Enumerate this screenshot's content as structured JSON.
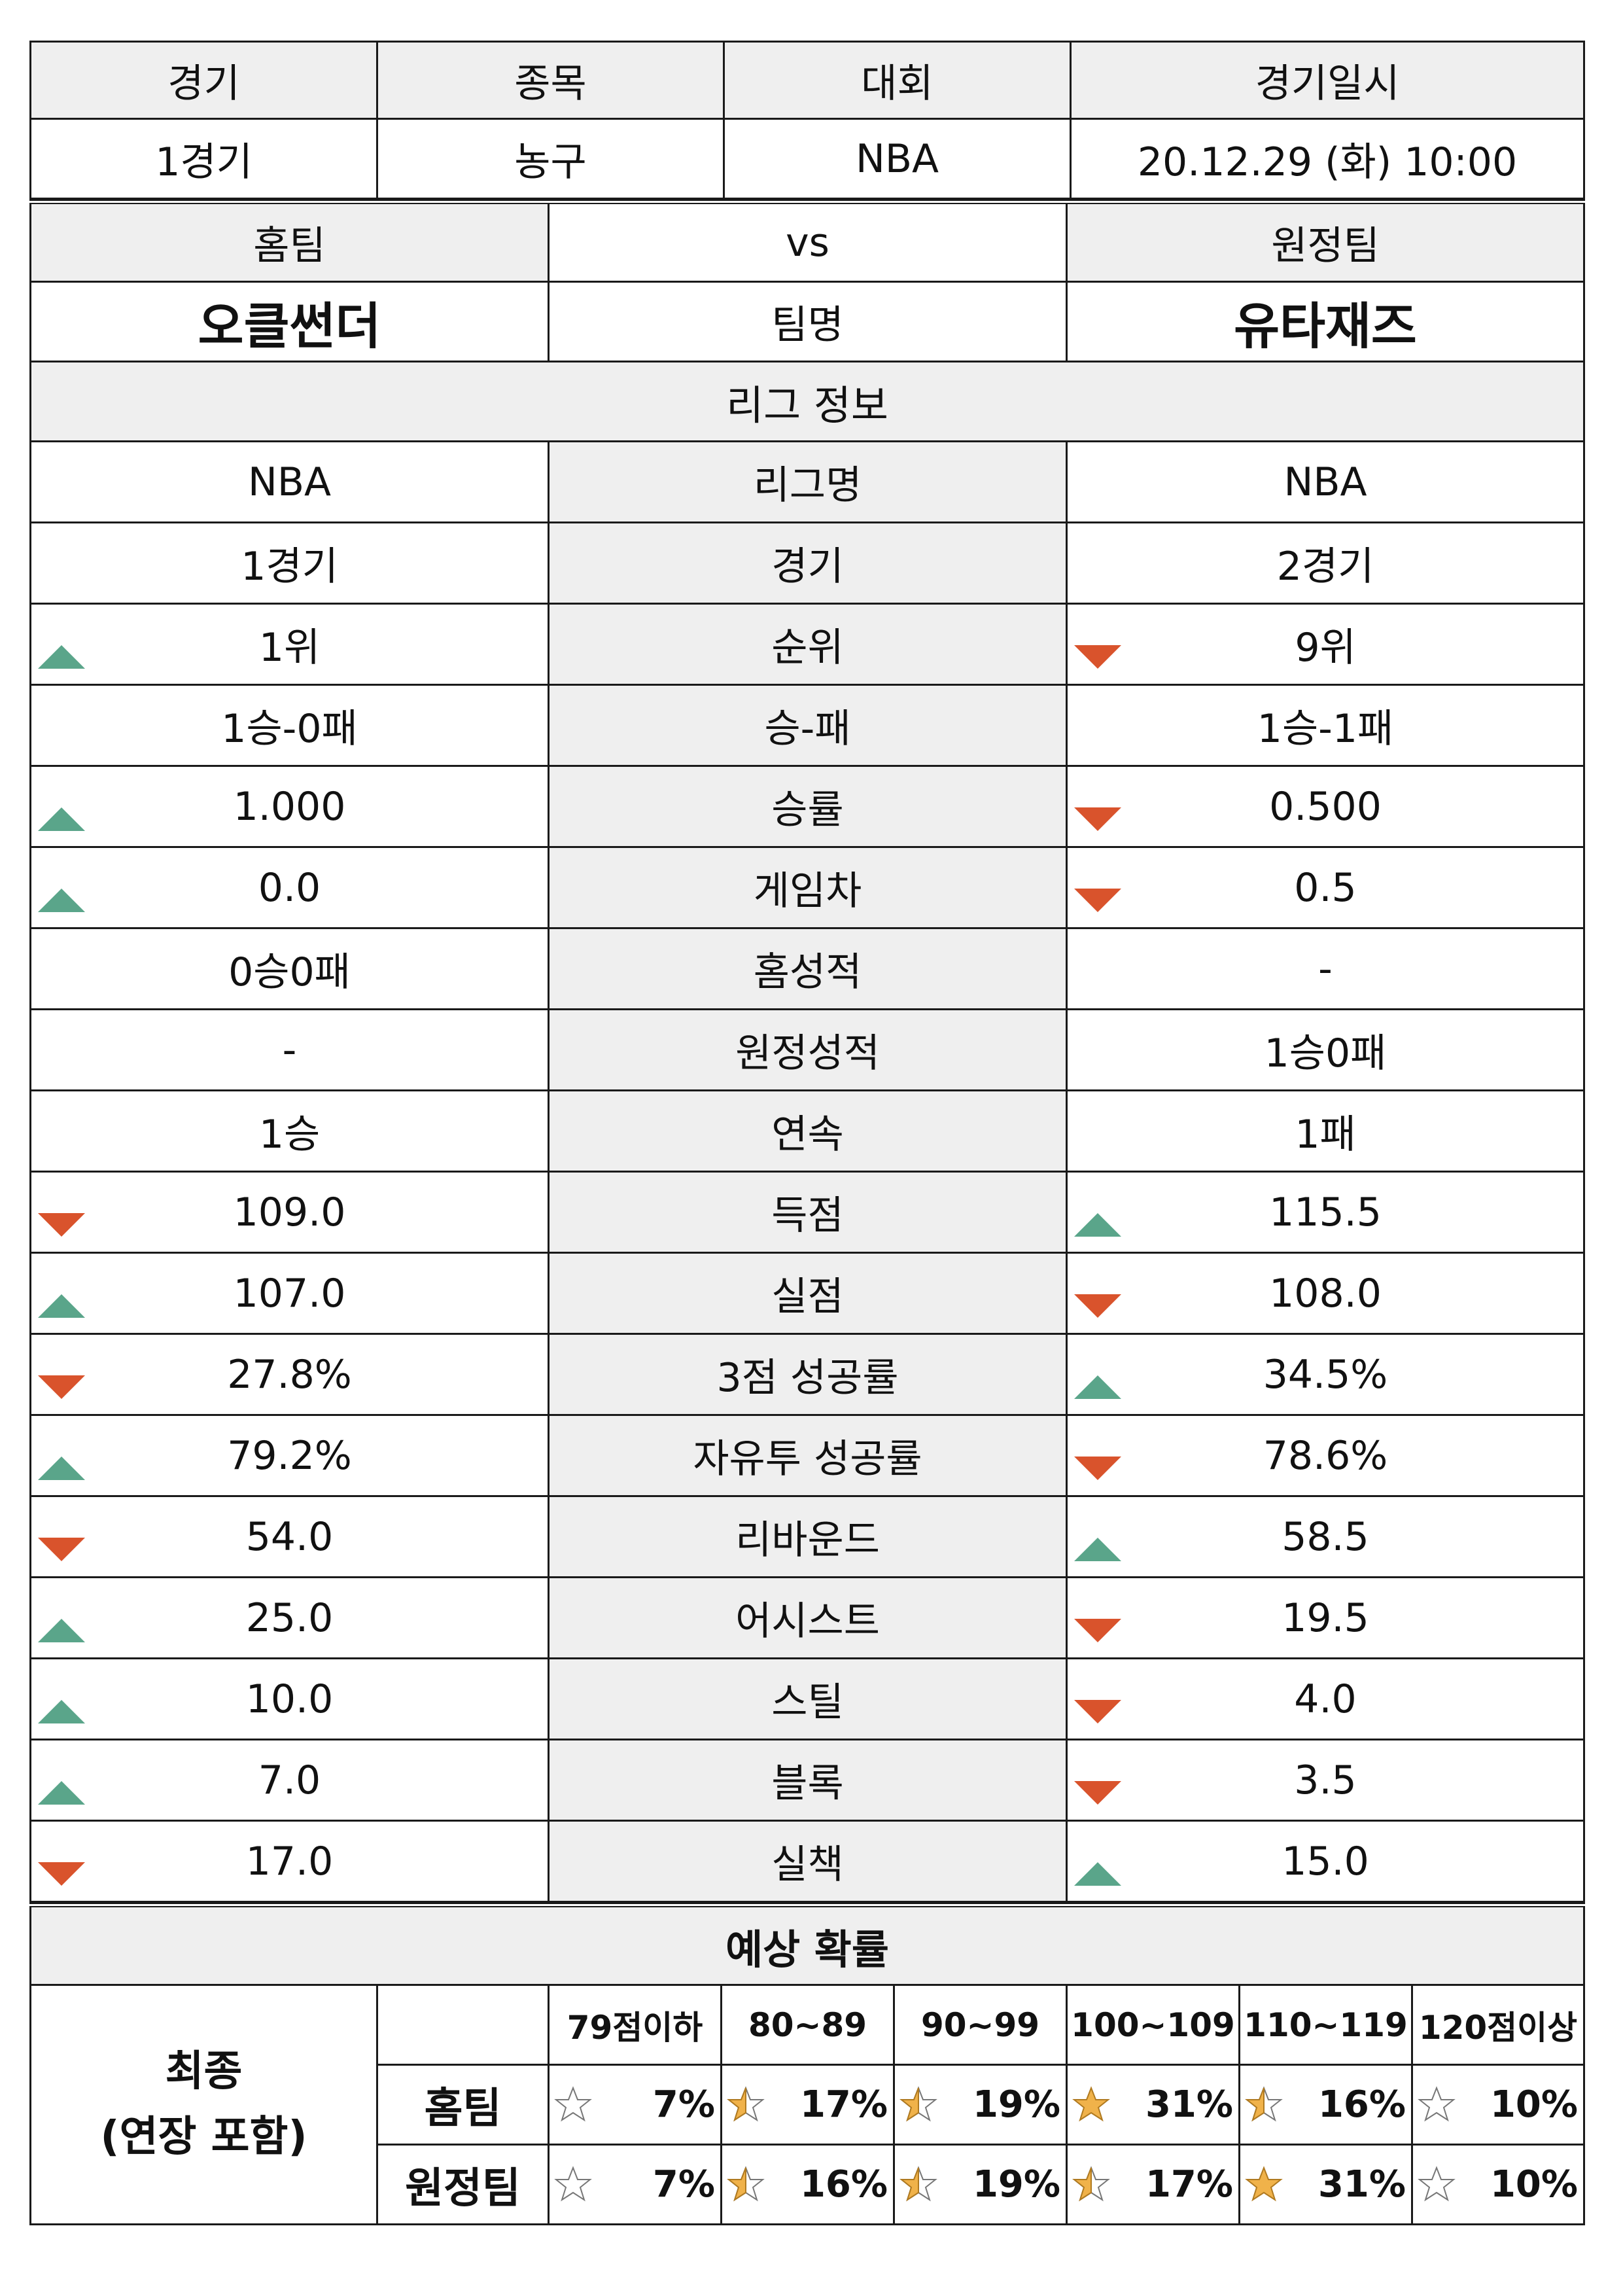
{
  "header": {
    "labels": [
      "경기",
      "종목",
      "대회",
      "경기일시"
    ],
    "values": [
      "1경기",
      "농구",
      "NBA",
      "20.12.29 (화) 10:00"
    ]
  },
  "teams": {
    "home_label": "홈팀",
    "vs": "vs",
    "away_label": "원정팀",
    "home_name": "오클썬더",
    "team_label": "팀명",
    "away_name": "유타재즈"
  },
  "league_section_title": "리그 정보",
  "stats": [
    {
      "home": "NBA",
      "label": "리그명",
      "away": "NBA",
      "home_arrow": "",
      "away_arrow": "",
      "gray": "mid"
    },
    {
      "home": "1경기",
      "label": "경기",
      "away": "2경기",
      "home_arrow": "",
      "away_arrow": "",
      "gray": "mid"
    },
    {
      "home": "1위",
      "label": "순위",
      "away": "9위",
      "home_arrow": "up",
      "away_arrow": "down",
      "gray": "none"
    },
    {
      "home": "1승-0패",
      "label": "승-패",
      "away": "1승-1패",
      "home_arrow": "",
      "away_arrow": "",
      "gray": "mid"
    },
    {
      "home": "1.000",
      "label": "승률",
      "away": "0.500",
      "home_arrow": "up",
      "away_arrow": "down",
      "gray": "none"
    },
    {
      "home": "0.0",
      "label": "게임차",
      "away": "0.5",
      "home_arrow": "up",
      "away_arrow": "down",
      "gray": "none"
    },
    {
      "home": "0승0패",
      "label": "홈성적",
      "away": "-",
      "home_arrow": "",
      "away_arrow": "",
      "gray": "mid"
    },
    {
      "home": "-",
      "label": "원정성적",
      "away": "1승0패",
      "home_arrow": "",
      "away_arrow": "",
      "gray": "mid"
    },
    {
      "home": "1승",
      "label": "연속",
      "away": "1패",
      "home_arrow": "",
      "away_arrow": "",
      "gray": "mid"
    },
    {
      "home": "109.0",
      "label": "득점",
      "away": "115.5",
      "home_arrow": "down",
      "away_arrow": "up",
      "gray": "none"
    },
    {
      "home": "107.0",
      "label": "실점",
      "away": "108.0",
      "home_arrow": "up",
      "away_arrow": "down",
      "gray": "none"
    },
    {
      "home": "27.8%",
      "label": "3점 성공률",
      "away": "34.5%",
      "home_arrow": "down",
      "away_arrow": "up",
      "gray": "none"
    },
    {
      "home": "79.2%",
      "label": "자유투 성공률",
      "away": "78.6%",
      "home_arrow": "up",
      "away_arrow": "down",
      "gray": "none"
    },
    {
      "home": "54.0",
      "label": "리바운드",
      "away": "58.5",
      "home_arrow": "down",
      "away_arrow": "up",
      "gray": "none"
    },
    {
      "home": "25.0",
      "label": "어시스트",
      "away": "19.5",
      "home_arrow": "up",
      "away_arrow": "down",
      "gray": "none"
    },
    {
      "home": "10.0",
      "label": "스틸",
      "away": "4.0",
      "home_arrow": "up",
      "away_arrow": "down",
      "gray": "none"
    },
    {
      "home": "7.0",
      "label": "블록",
      "away": "3.5",
      "home_arrow": "up",
      "away_arrow": "down",
      "gray": "none"
    },
    {
      "home": "17.0",
      "label": "실책",
      "away": "15.0",
      "home_arrow": "down",
      "away_arrow": "up",
      "gray": "none"
    }
  ],
  "prediction": {
    "title": "예상 확률",
    "left_label_line1": "최종",
    "left_label_line2": "(연장 포함)",
    "ranges": [
      "79점이하",
      "80~89",
      "90~99",
      "100~109",
      "110~119",
      "120점이상"
    ],
    "rows": [
      {
        "team": "홈팀",
        "values": [
          "7%",
          "17%",
          "19%",
          "31%",
          "16%",
          "10%"
        ],
        "stars": [
          "empty",
          "half",
          "half",
          "full",
          "half",
          "empty"
        ]
      },
      {
        "team": "원정팀",
        "values": [
          "7%",
          "16%",
          "19%",
          "17%",
          "31%",
          "10%"
        ],
        "stars": [
          "empty",
          "half",
          "half",
          "half",
          "full",
          "empty"
        ]
      }
    ]
  },
  "colors": {
    "up_arrow": "#5aa58a",
    "down_arrow": "#d9532c",
    "header_bg": "#efefef",
    "star": "#f0b24a"
  }
}
